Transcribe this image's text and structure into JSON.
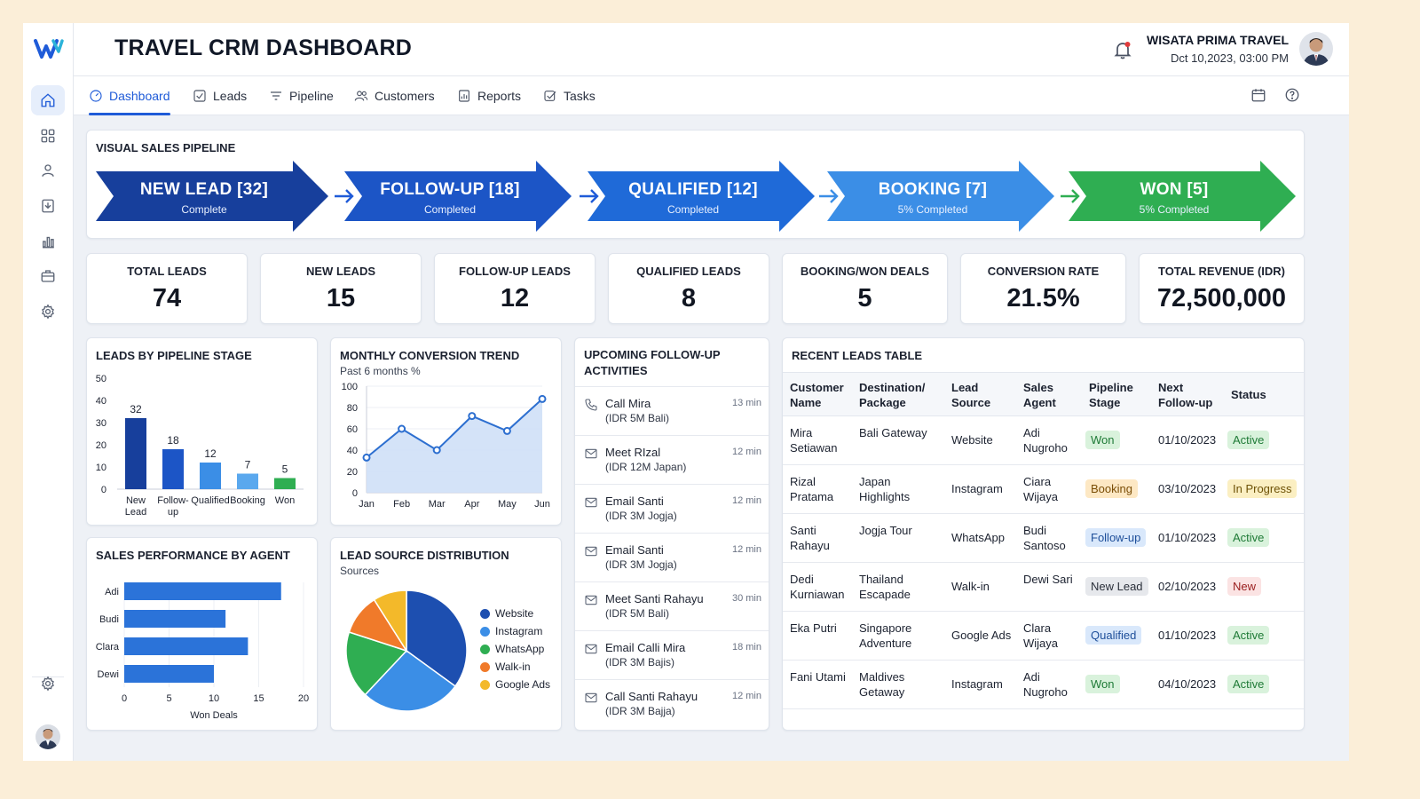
{
  "header": {
    "title": "TRAVEL CRM DASHBOARD",
    "company": "WISATA PRIMA TRAVEL",
    "datetime": "Dct 10,2023, 03:00 PM"
  },
  "tabs": [
    {
      "label": "Dashboard",
      "icon": "gauge-icon"
    },
    {
      "label": "Leads",
      "icon": "checkbox-icon"
    },
    {
      "label": "Pipeline",
      "icon": "filter-icon"
    },
    {
      "label": "Customers",
      "icon": "users-icon"
    },
    {
      "label": "Reports",
      "icon": "report-icon"
    },
    {
      "label": "Tasks",
      "icon": "task-icon"
    }
  ],
  "sidebar": {
    "items": [
      "home-icon",
      "grid-icon",
      "user-icon",
      "download-icon",
      "bar-chart-icon",
      "briefcase-icon",
      "settings-icon"
    ],
    "bottom": [
      "settings-icon",
      "avatar"
    ]
  },
  "pipeline": {
    "title": "VISUAL SALES PIPELINE",
    "stages": [
      {
        "label": "NEW LEAD [32]",
        "sub": "Complete",
        "color": "#173f9c"
      },
      {
        "label": "FOLLOW-UP [18]",
        "sub": "Completed",
        "color": "#1c55c6"
      },
      {
        "label": "QUALIFIED [12]",
        "sub": "Completed",
        "color": "#1f6ad8"
      },
      {
        "label": "BOOKING [7]",
        "sub": "5% Completed",
        "color": "#3b8ee6"
      },
      {
        "label": "WON [5]",
        "sub": "5% Completed",
        "color": "#2fae52"
      }
    ]
  },
  "kpis": [
    {
      "label": "TOTAL LEADS",
      "value": "74"
    },
    {
      "label": "NEW LEADS",
      "value": "15"
    },
    {
      "label": "FOLLOW-UP LEADS",
      "value": "12"
    },
    {
      "label": "QUALIFIED LEADS",
      "value": "8"
    },
    {
      "label": "BOOKING/WON DEALS",
      "value": "5"
    },
    {
      "label": "CONVERSION RATE",
      "value": "21.5%"
    },
    {
      "label": "TOTAL REVENUE (IDR)",
      "value": "72,500,000"
    }
  ],
  "charts": {
    "stage_title": "LEADS BY PIPELINE STAGE",
    "trend_title": "MONTHLY CONVERSION TREND",
    "trend_sub": "Past 6 months %",
    "agent_title": "SALES PERFORMANCE BY AGENT",
    "source_title": "LEAD SOURCE DISTRIBUTION",
    "source_sub": "Sources"
  },
  "chart_data": [
    {
      "type": "bar",
      "title": "LEADS BY PIPELINE STAGE",
      "categories": [
        "New Lead",
        "Follow-up",
        "Qualified",
        "Booking",
        "Won"
      ],
      "values": [
        32,
        18,
        12,
        7,
        5
      ],
      "colors": [
        "#173f9c",
        "#1c55c6",
        "#3b8ee6",
        "#5aa8ee",
        "#2fae52"
      ],
      "ylim": [
        0,
        50
      ],
      "yticks": [
        0,
        10,
        20,
        30,
        40,
        50
      ]
    },
    {
      "type": "area",
      "title": "MONTHLY CONVERSION TREND",
      "subtitle": "Past 6 months %",
      "x": [
        "Jan",
        "Feb",
        "Mar",
        "Apr",
        "May",
        "Jun"
      ],
      "values": [
        33,
        60,
        40,
        72,
        58,
        88
      ],
      "ylim": [
        0,
        100
      ],
      "yticks": [
        0,
        20,
        40,
        60,
        80,
        100
      ]
    },
    {
      "type": "bar",
      "orientation": "horizontal",
      "title": "SALES PERFORMANCE BY AGENT",
      "categories": [
        "Adi",
        "Budi",
        "Clara",
        "Dewi"
      ],
      "values": [
        17.5,
        11.3,
        13.8,
        10
      ],
      "xlabel": "Won Deals",
      "xlim": [
        0,
        20
      ],
      "xticks": [
        0,
        5,
        10,
        15,
        20
      ]
    },
    {
      "type": "pie",
      "title": "LEAD SOURCE DISTRIBUTION",
      "subtitle": "Sources",
      "labels": [
        "Website",
        "Instagram",
        "WhatsApp",
        "Walk-in",
        "Google Ads"
      ],
      "values": [
        35,
        27,
        18,
        11,
        9
      ],
      "colors": [
        "#1d4fb0",
        "#3b8ee6",
        "#2fae52",
        "#f07a2a",
        "#f3b92a"
      ]
    }
  ],
  "followups": {
    "title": "UPCOMING FOLLOW-UP ACTIVITIES",
    "items": [
      {
        "icon": "phone-icon",
        "title": "Call Mira",
        "detail": "(IDR 5M Bali)",
        "time": "13 min"
      },
      {
        "icon": "mail-icon",
        "title": "Meet RIzal",
        "detail": "(IDR 12M Japan)",
        "time": "12 min"
      },
      {
        "icon": "mail-icon",
        "title": "Email Santi",
        "detail": "(IDR 3M Jogja)",
        "time": "12 min"
      },
      {
        "icon": "mail-icon",
        "title": "Email Santi",
        "detail": "(IDR 3M Jogja)",
        "time": "12 min"
      },
      {
        "icon": "mail-icon",
        "title": "Meet Santi Rahayu",
        "detail": "(IDR 5M Bali)",
        "time": "30 min"
      },
      {
        "icon": "mail-icon",
        "title": "Email Calli Mira",
        "detail": "(IDR 3M Bajis)",
        "time": "18 min"
      },
      {
        "icon": "mail-icon",
        "title": "Call Santi Rahayu",
        "detail": "(IDR 3M Bajja)",
        "time": "12 min"
      }
    ]
  },
  "table": {
    "title": "RECENT LEADS TABLE",
    "headers": [
      "Customer Name",
      "Destination/ Package",
      "Lead Source",
      "Sales Agent",
      "Pipeline Stage",
      "Next Follow-up",
      "Status"
    ],
    "rows": [
      {
        "name": "Mira Setiawan",
        "dest": "Bali Gateway",
        "source": "Website",
        "agent": "Adi Nugroho",
        "stage": "Won",
        "stage_class": "b-won",
        "next": "01/10/2023",
        "status": "Active",
        "status_class": "s-active"
      },
      {
        "name": "Rizal Pratama",
        "dest": "Japan Highlights",
        "source": "Instagram",
        "agent": "Ciara Wijaya",
        "stage": "Booking",
        "stage_class": "b-booking",
        "next": "03/10/2023",
        "status": "In Progress",
        "status_class": "s-progress"
      },
      {
        "name": "Santi Rahayu",
        "dest": "Jogja Tour",
        "source": "WhatsApp",
        "agent": "Budi Santoso",
        "stage": "Follow-up",
        "stage_class": "b-follow",
        "next": "01/10/2023",
        "status": "Active",
        "status_class": "s-active"
      },
      {
        "name": "Dedi Kurniawan",
        "dest": "Thailand Escapade",
        "source": "Walk-in",
        "agent": "Dewi Sari",
        "stage": "New Lead",
        "stage_class": "b-new",
        "next": "02/10/2023",
        "status": "New",
        "status_class": "s-new"
      },
      {
        "name": "Eka Putri",
        "dest": "Singapore Adventure",
        "source": "Google Ads",
        "agent": "Clara Wijaya",
        "stage": "Qualified",
        "stage_class": "b-qual",
        "next": "01/10/2023",
        "status": "Active",
        "status_class": "s-active"
      },
      {
        "name": "Fani Utami",
        "dest": "Maldives Getaway",
        "source": "Instagram",
        "agent": "Adi Nugroho",
        "stage": "Won",
        "stage_class": "b-won",
        "next": "04/10/2023",
        "status": "Active",
        "status_class": "s-active"
      }
    ]
  }
}
